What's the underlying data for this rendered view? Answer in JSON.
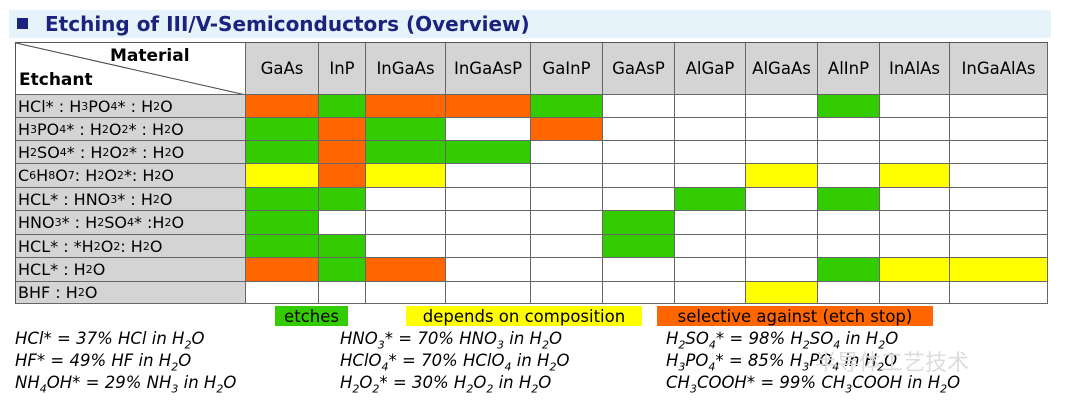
{
  "title": "Etching of III/V-Semiconductors (Overview)",
  "corner": {
    "material": "Material",
    "etchant": "Etchant"
  },
  "materials": [
    "GaAs",
    "InP",
    "InGaAs",
    "InGaAsP",
    "GaInP",
    "GaAsP",
    "AlGaP",
    "AlGaAs",
    "AlInP",
    "InAlAs",
    "InGaAlAs"
  ],
  "etchants": [
    "HCl* : H<sub>3</sub>PO<sub>4</sub>* : H<sub>2</sub>O",
    "H<sub>3</sub>PO<sub>4</sub>* : H<sub>2</sub>O<sub>2</sub>* : H<sub>2</sub>O",
    "H<sub>2</sub>SO<sub>4</sub>* : H<sub>2</sub>O<sub>2</sub>* : H<sub>2</sub>O",
    "C<sub>6</sub>H<sub>8</sub>O<sub>7</sub> : H<sub>2</sub>O<sub>2</sub>*: H<sub>2</sub>O",
    "HCL* : HNO<sub>3</sub>* : H<sub>2</sub>O",
    "HNO<sub>3</sub>* : H<sub>2</sub>SO<sub>4</sub>* :H<sub>2</sub>O",
    "HCL* : *H<sub>2</sub>O<sub>2</sub> : H<sub>2</sub>O",
    "HCL* : H<sub>2</sub>O",
    "BHF : H<sub>2</sub>O"
  ],
  "cells": [
    "OGOOG---G--",
    "GOG-O------",
    "GOGG-------",
    "YOY----Y-Y-",
    "GG----G-G--",
    "G----G-----",
    "GG---G-----",
    "OGO-----GYY",
    "-------Y---"
  ],
  "colors": {
    "G": "#33cc00",
    "O": "#ff6600",
    "Y": "#ffff00",
    "-": "#ffffff"
  },
  "legend": [
    {
      "label": "etches",
      "color": "#33cc00"
    },
    {
      "label": "depends on composition",
      "color": "#ffff00"
    },
    {
      "label": "selective against (etch stop)",
      "color": "#ff6600"
    }
  ],
  "notes": [
    "HCl* = 37% HCl in H<sub>2</sub>O",
    "HNO<sub>3</sub>* = 70% HNO<sub>3</sub> in H<sub>2</sub>O",
    "H<sub>2</sub>SO<sub>4</sub>* = 98% H<sub>2</sub>SO<sub>4</sub> in H<sub>2</sub>O",
    "HF* = 49% HF in H<sub>2</sub>O",
    "HClO<sub>4</sub>* = 70% HClO<sub>4</sub> in H<sub>2</sub>O",
    "H<sub>3</sub>PO<sub>4</sub>* = 85% H<sub>3</sub>PO<sub>4</sub> in H<sub>2</sub>O",
    "NH<sub>4</sub>OH* = 29% NH<sub>3</sub> in H<sub>2</sub>O",
    "H<sub>2</sub>O<sub>2</sub>* = 30% H<sub>2</sub>O<sub>2</sub> in H<sub>2</sub>O",
    "CH<sub>3</sub>COOH* = 99% CH<sub>3</sub>COOH in H<sub>2</sub>O"
  ],
  "watermark": "半导体工艺技术"
}
